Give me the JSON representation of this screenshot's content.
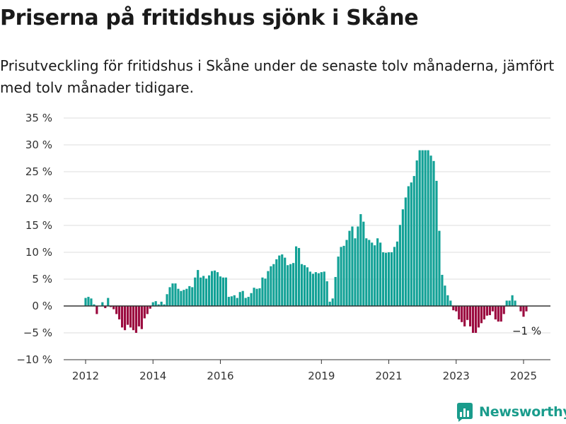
{
  "title": "Priserna på fritidshus sjönk i Skåne",
  "subtitle": "Prisutveckling för fritidshus i Skåne under de senaste tolv månaderna, jämfört med tolv månader tidigare.",
  "brand": "Newsworthy",
  "colors": {
    "positive": "#12a196",
    "negative": "#9b0a3f",
    "grid": "#dddddd",
    "axis": "#333333",
    "brand": "#1a9c8c"
  },
  "chart_data": {
    "type": "bar",
    "ylim": [
      -10,
      35
    ],
    "y_ticks": [
      -10,
      -5,
      0,
      5,
      10,
      15,
      20,
      25,
      30,
      35
    ],
    "y_tick_labels": [
      "−10 %",
      "−5 %",
      "0 %",
      "5 %",
      "10 %",
      "15 %",
      "20 %",
      "25 %",
      "30 %",
      "35 %"
    ],
    "x_ticks": [
      2012,
      2014,
      2016,
      2019,
      2021,
      2023,
      2025
    ],
    "x_tick_labels": [
      "2012",
      "2014",
      "2016",
      "2019",
      "2021",
      "2023",
      "2025"
    ],
    "annotation": {
      "text": "−1 %",
      "value": -1
    },
    "start": "2012-01",
    "frequency": "monthly",
    "values": [
      1.5,
      1.7,
      1.4,
      0.3,
      -1.5,
      0.0,
      0.7,
      -0.4,
      1.5,
      -0.2,
      -0.6,
      -1.5,
      -2.5,
      -4.0,
      -4.5,
      -3.5,
      -4.0,
      -4.5,
      -5.0,
      -3.8,
      -4.3,
      -2.3,
      -1.5,
      -0.5,
      0.7,
      0.9,
      0.3,
      0.8,
      0.3,
      2.2,
      3.5,
      4.2,
      4.2,
      3.2,
      2.8,
      3.0,
      3.2,
      3.7,
      3.5,
      5.3,
      6.7,
      5.3,
      5.6,
      5.1,
      5.7,
      6.5,
      6.6,
      6.3,
      5.5,
      5.3,
      5.3,
      1.7,
      1.8,
      2.0,
      1.5,
      2.6,
      2.8,
      1.5,
      1.7,
      2.4,
      3.4,
      3.2,
      3.3,
      5.3,
      5.1,
      6.5,
      7.4,
      7.8,
      8.7,
      9.4,
      9.6,
      9.0,
      7.6,
      7.8,
      8.0,
      11.1,
      10.8,
      7.8,
      7.6,
      7.2,
      6.4,
      6.0,
      6.3,
      6.1,
      6.3,
      6.4,
      4.6,
      0.8,
      1.4,
      5.4,
      9.2,
      11.0,
      11.2,
      12.3,
      14.0,
      14.8,
      12.6,
      14.8,
      17.1,
      15.7,
      12.6,
      12.3,
      11.8,
      11.3,
      12.6,
      11.8,
      10.0,
      9.9,
      10.0,
      10.0,
      11.0,
      12.0,
      15.1,
      18.0,
      20.2,
      22.3,
      23.0,
      24.2,
      27.1,
      29.0,
      29.0,
      29.0,
      29.0,
      28.0,
      27.0,
      23.3,
      14.0,
      5.8,
      3.8,
      2.0,
      1.0,
      -0.8,
      -1.0,
      -2.5,
      -3.0,
      -3.8,
      -2.6,
      -3.8,
      -5.0,
      -5.0,
      -4.0,
      -3.2,
      -2.5,
      -1.8,
      -1.7,
      -1.0,
      -2.5,
      -2.9,
      -2.9,
      -1.5,
      1.0,
      1.0,
      2.0,
      1.0,
      0.0,
      -1.0,
      -2.0,
      -1.0
    ]
  }
}
